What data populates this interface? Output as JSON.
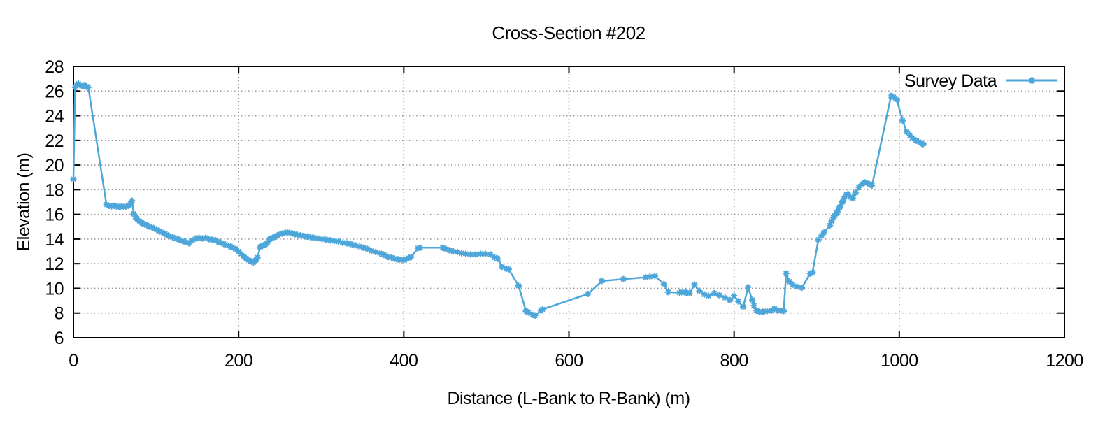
{
  "chart": {
    "title": "Cross-Section #202",
    "xlabel": "Distance (L-Bank to R-Bank) (m)",
    "ylabel": "Elevation (m)",
    "legend": {
      "label": "Survey Data",
      "position": "top-right-inside"
    },
    "colors": {
      "series": "#4DA6D9",
      "grid": "#999999",
      "border": "#000000",
      "text": "#000000",
      "background": "#FFFFFF"
    }
  },
  "chart_data": {
    "type": "line",
    "title": "Cross-Section #202",
    "xlabel": "Distance (L-Bank to R-Bank) (m)",
    "ylabel": "Elevation (m)",
    "xlim": [
      0,
      1200
    ],
    "ylim": [
      6,
      28
    ],
    "xticks": [
      0,
      200,
      400,
      600,
      800,
      1000,
      1200
    ],
    "yticks": [
      6,
      8,
      10,
      12,
      14,
      16,
      18,
      20,
      22,
      24,
      26,
      28
    ],
    "grid": true,
    "legend_position": "top-right",
    "series": [
      {
        "name": "Survey Data",
        "marker": "asterisk",
        "points": [
          [
            0,
            18.85
          ],
          [
            2,
            26.3
          ],
          [
            4,
            26.5
          ],
          [
            6,
            26.6
          ],
          [
            8,
            26.5
          ],
          [
            10,
            26.4
          ],
          [
            12,
            26.45
          ],
          [
            14,
            26.5
          ],
          [
            16,
            26.35
          ],
          [
            18,
            26.3
          ],
          [
            40,
            16.8
          ],
          [
            43,
            16.7
          ],
          [
            46,
            16.65
          ],
          [
            49,
            16.7
          ],
          [
            52,
            16.65
          ],
          [
            55,
            16.6
          ],
          [
            58,
            16.65
          ],
          [
            61,
            16.6
          ],
          [
            64,
            16.65
          ],
          [
            67,
            16.7
          ],
          [
            69,
            16.9
          ],
          [
            71,
            17.1
          ],
          [
            73,
            16.05
          ],
          [
            75,
            15.8
          ],
          [
            77,
            15.65
          ],
          [
            80,
            15.45
          ],
          [
            83,
            15.3
          ],
          [
            86,
            15.2
          ],
          [
            89,
            15.1
          ],
          [
            92,
            15.0
          ],
          [
            95,
            14.95
          ],
          [
            98,
            14.85
          ],
          [
            101,
            14.75
          ],
          [
            104,
            14.65
          ],
          [
            107,
            14.55
          ],
          [
            110,
            14.45
          ],
          [
            113,
            14.35
          ],
          [
            116,
            14.25
          ],
          [
            120,
            14.15
          ],
          [
            124,
            14.05
          ],
          [
            128,
            13.95
          ],
          [
            132,
            13.85
          ],
          [
            136,
            13.75
          ],
          [
            140,
            13.65
          ],
          [
            144,
            13.9
          ],
          [
            148,
            14.05
          ],
          [
            152,
            14.1
          ],
          [
            156,
            14.05
          ],
          [
            160,
            14.1
          ],
          [
            164,
            14.0
          ],
          [
            168,
            13.95
          ],
          [
            172,
            13.9
          ],
          [
            176,
            13.75
          ],
          [
            180,
            13.65
          ],
          [
            184,
            13.55
          ],
          [
            188,
            13.45
          ],
          [
            192,
            13.35
          ],
          [
            196,
            13.2
          ],
          [
            200,
            13.0
          ],
          [
            203,
            12.8
          ],
          [
            206,
            12.6
          ],
          [
            209,
            12.45
          ],
          [
            212,
            12.3
          ],
          [
            215,
            12.2
          ],
          [
            218,
            12.1
          ],
          [
            221,
            12.3
          ],
          [
            223,
            12.5
          ],
          [
            226,
            13.35
          ],
          [
            229,
            13.45
          ],
          [
            232,
            13.55
          ],
          [
            235,
            13.7
          ],
          [
            238,
            14.0
          ],
          [
            241,
            14.1
          ],
          [
            244,
            14.2
          ],
          [
            247,
            14.3
          ],
          [
            250,
            14.4
          ],
          [
            253,
            14.45
          ],
          [
            256,
            14.5
          ],
          [
            259,
            14.55
          ],
          [
            262,
            14.5
          ],
          [
            265,
            14.45
          ],
          [
            268,
            14.4
          ],
          [
            271,
            14.35
          ],
          [
            275,
            14.3
          ],
          [
            279,
            14.25
          ],
          [
            283,
            14.2
          ],
          [
            287,
            14.15
          ],
          [
            291,
            14.1
          ],
          [
            296,
            14.05
          ],
          [
            301,
            14.0
          ],
          [
            306,
            13.95
          ],
          [
            311,
            13.9
          ],
          [
            316,
            13.85
          ],
          [
            321,
            13.8
          ],
          [
            326,
            13.7
          ],
          [
            331,
            13.65
          ],
          [
            336,
            13.6
          ],
          [
            341,
            13.5
          ],
          [
            346,
            13.4
          ],
          [
            351,
            13.3
          ],
          [
            356,
            13.2
          ],
          [
            361,
            13.05
          ],
          [
            366,
            12.95
          ],
          [
            371,
            12.85
          ],
          [
            375,
            12.75
          ],
          [
            378,
            12.65
          ],
          [
            381,
            12.55
          ],
          [
            385,
            12.5
          ],
          [
            389,
            12.4
          ],
          [
            393,
            12.35
          ],
          [
            397,
            12.3
          ],
          [
            400,
            12.3
          ],
          [
            403,
            12.35
          ],
          [
            406,
            12.45
          ],
          [
            409,
            12.55
          ],
          [
            417,
            13.25
          ],
          [
            420,
            13.3
          ],
          [
            447,
            13.3
          ],
          [
            450,
            13.2
          ],
          [
            455,
            13.1
          ],
          [
            460,
            13.0
          ],
          [
            465,
            12.95
          ],
          [
            470,
            12.85
          ],
          [
            475,
            12.8
          ],
          [
            481,
            12.75
          ],
          [
            487,
            12.75
          ],
          [
            493,
            12.8
          ],
          [
            499,
            12.8
          ],
          [
            505,
            12.75
          ],
          [
            510,
            12.5
          ],
          [
            514,
            12.4
          ],
          [
            519,
            11.75
          ],
          [
            524,
            11.6
          ],
          [
            527,
            11.55
          ],
          [
            539,
            10.2
          ],
          [
            548,
            8.15
          ],
          [
            551,
            8.05
          ],
          [
            556,
            7.85
          ],
          [
            559,
            7.8
          ],
          [
            566,
            8.2
          ],
          [
            568,
            8.3
          ],
          [
            623,
            9.55
          ],
          [
            640,
            10.6
          ],
          [
            666,
            10.75
          ],
          [
            693,
            10.9
          ],
          [
            698,
            10.95
          ],
          [
            704,
            11.0
          ],
          [
            715,
            10.35
          ],
          [
            720,
            9.7
          ],
          [
            734,
            9.65
          ],
          [
            738,
            9.7
          ],
          [
            742,
            9.65
          ],
          [
            746,
            9.6
          ],
          [
            752,
            10.3
          ],
          [
            758,
            9.8
          ],
          [
            764,
            9.5
          ],
          [
            769,
            9.4
          ],
          [
            776,
            9.6
          ],
          [
            782,
            9.45
          ],
          [
            789,
            9.25
          ],
          [
            795,
            9.05
          ],
          [
            800,
            9.4
          ],
          [
            805,
            8.95
          ],
          [
            811,
            8.5
          ],
          [
            817,
            10.1
          ],
          [
            822,
            9.05
          ],
          [
            824,
            8.6
          ],
          [
            827,
            8.2
          ],
          [
            830,
            8.1
          ],
          [
            835,
            8.1
          ],
          [
            840,
            8.15
          ],
          [
            845,
            8.2
          ],
          [
            849,
            8.35
          ],
          [
            853,
            8.2
          ],
          [
            857,
            8.2
          ],
          [
            860,
            8.15
          ],
          [
            863,
            11.2
          ],
          [
            867,
            10.55
          ],
          [
            871,
            10.3
          ],
          [
            876,
            10.15
          ],
          [
            882,
            10.05
          ],
          [
            892,
            11.2
          ],
          [
            895,
            11.3
          ],
          [
            902,
            13.95
          ],
          [
            906,
            14.3
          ],
          [
            909,
            14.55
          ],
          [
            916,
            15.1
          ],
          [
            918,
            15.45
          ],
          [
            920,
            15.75
          ],
          [
            922,
            15.9
          ],
          [
            924,
            16.1
          ],
          [
            926,
            16.35
          ],
          [
            928,
            16.6
          ],
          [
            931,
            17.0
          ],
          [
            933,
            17.3
          ],
          [
            936,
            17.6
          ],
          [
            938,
            17.65
          ],
          [
            941,
            17.4
          ],
          [
            944,
            17.3
          ],
          [
            947,
            17.75
          ],
          [
            951,
            18.2
          ],
          [
            955,
            18.45
          ],
          [
            958,
            18.6
          ],
          [
            961,
            18.55
          ],
          [
            964,
            18.45
          ],
          [
            967,
            18.35
          ],
          [
            990,
            25.6
          ],
          [
            993,
            25.5
          ],
          [
            997,
            25.3
          ],
          [
            1004,
            23.6
          ],
          [
            1009,
            22.7
          ],
          [
            1013,
            22.4
          ],
          [
            1016,
            22.2
          ],
          [
            1020,
            22.0
          ],
          [
            1023,
            21.9
          ],
          [
            1026,
            21.8
          ],
          [
            1029,
            21.7
          ]
        ]
      }
    ]
  }
}
